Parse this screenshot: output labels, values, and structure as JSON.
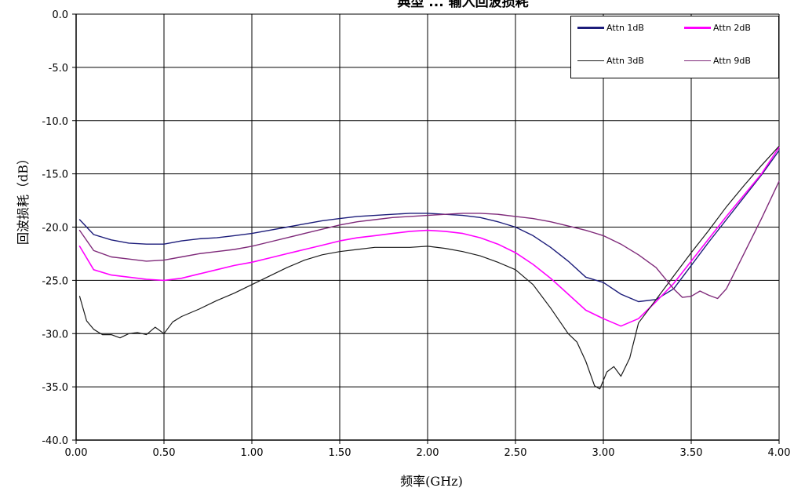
{
  "chart_data": {
    "type": "line",
    "title": "典型 ... 输入回波损耗",
    "xlabel": "频率(GHz)",
    "ylabel": "回波损耗（dB）",
    "xlim": [
      0,
      4
    ],
    "ylim": [
      -40,
      0
    ],
    "x_ticks": [
      "0.00",
      "0.50",
      "1.00",
      "1.50",
      "2.00",
      "2.50",
      "3.00",
      "3.50",
      "4.00"
    ],
    "y_ticks": [
      "0.0",
      "-5.0",
      "-10.0",
      "-15.0",
      "-20.0",
      "-25.0",
      "-30.0",
      "-35.0",
      "-40.0"
    ],
    "grid": true,
    "legend_position": "top-right",
    "series": [
      {
        "name": "Attn 1dB",
        "color": "#1c1c7a",
        "width": 1.4,
        "x": [
          0.02,
          0.1,
          0.2,
          0.3,
          0.4,
          0.5,
          0.6,
          0.7,
          0.8,
          0.9,
          1.0,
          1.1,
          1.2,
          1.3,
          1.4,
          1.5,
          1.6,
          1.7,
          1.8,
          1.9,
          2.0,
          2.1,
          2.2,
          2.3,
          2.4,
          2.5,
          2.6,
          2.7,
          2.8,
          2.9,
          3.0,
          3.1,
          3.2,
          3.3,
          3.4,
          3.5,
          3.6,
          3.7,
          3.8,
          3.9,
          4.0
        ],
        "y": [
          -19.3,
          -20.7,
          -21.2,
          -21.5,
          -21.6,
          -21.6,
          -21.3,
          -21.1,
          -21.0,
          -20.8,
          -20.6,
          -20.3,
          -20.0,
          -19.7,
          -19.4,
          -19.2,
          -19.0,
          -18.9,
          -18.8,
          -18.7,
          -18.7,
          -18.8,
          -18.9,
          -19.1,
          -19.5,
          -20.0,
          -20.8,
          -21.9,
          -23.2,
          -24.7,
          -25.2,
          -26.3,
          -27.0,
          -26.8,
          -25.8,
          -23.6,
          -21.4,
          -19.3,
          -17.2,
          -15.1,
          -12.8
        ]
      },
      {
        "name": "Attn 2dB",
        "color": "#ff00ff",
        "width": 1.6,
        "x": [
          0.02,
          0.1,
          0.2,
          0.3,
          0.4,
          0.5,
          0.6,
          0.7,
          0.8,
          0.9,
          1.0,
          1.1,
          1.2,
          1.3,
          1.4,
          1.5,
          1.6,
          1.7,
          1.8,
          1.9,
          2.0,
          2.1,
          2.2,
          2.3,
          2.4,
          2.5,
          2.6,
          2.7,
          2.8,
          2.9,
          3.0,
          3.1,
          3.2,
          3.3,
          3.4,
          3.5,
          3.6,
          3.7,
          3.8,
          3.9,
          4.0
        ],
        "y": [
          -21.8,
          -24.0,
          -24.5,
          -24.7,
          -24.9,
          -25.0,
          -24.8,
          -24.4,
          -24.0,
          -23.6,
          -23.3,
          -22.9,
          -22.5,
          -22.1,
          -21.7,
          -21.3,
          -21.0,
          -20.8,
          -20.6,
          -20.4,
          -20.3,
          -20.4,
          -20.6,
          -21.0,
          -21.6,
          -22.4,
          -23.5,
          -24.8,
          -26.3,
          -27.8,
          -28.6,
          -29.3,
          -28.6,
          -27.0,
          -25.3,
          -23.2,
          -21.1,
          -19.0,
          -17.0,
          -15.0,
          -12.5
        ]
      },
      {
        "name": "Attn 3dB",
        "color": "#1a1a1a",
        "width": 1.2,
        "x": [
          0.02,
          0.06,
          0.1,
          0.15,
          0.2,
          0.25,
          0.3,
          0.35,
          0.4,
          0.45,
          0.5,
          0.55,
          0.6,
          0.7,
          0.8,
          0.9,
          1.0,
          1.1,
          1.2,
          1.3,
          1.4,
          1.5,
          1.6,
          1.7,
          1.8,
          1.9,
          2.0,
          2.1,
          2.2,
          2.3,
          2.4,
          2.5,
          2.6,
          2.7,
          2.8,
          2.85,
          2.9,
          2.95,
          2.98,
          3.02,
          3.06,
          3.1,
          3.15,
          3.2,
          3.3,
          3.4,
          3.5,
          3.6,
          3.7,
          3.8,
          3.9,
          4.0
        ],
        "y": [
          -26.5,
          -28.8,
          -29.6,
          -30.1,
          -30.1,
          -30.4,
          -30.0,
          -29.9,
          -30.1,
          -29.4,
          -30.0,
          -28.9,
          -28.4,
          -27.7,
          -26.9,
          -26.2,
          -25.4,
          -24.6,
          -23.8,
          -23.1,
          -22.6,
          -22.3,
          -22.1,
          -21.9,
          -21.9,
          -21.9,
          -21.8,
          -22.0,
          -22.3,
          -22.7,
          -23.3,
          -24.0,
          -25.4,
          -27.6,
          -30.0,
          -30.8,
          -32.6,
          -34.9,
          -35.2,
          -33.6,
          -33.1,
          -34.0,
          -32.3,
          -29.0,
          -26.8,
          -24.6,
          -22.4,
          -20.3,
          -18.1,
          -16.1,
          -14.2,
          -12.4
        ]
      },
      {
        "name": "Attn 9dB",
        "color": "#7f2a7a",
        "width": 1.4,
        "x": [
          0.02,
          0.1,
          0.2,
          0.3,
          0.4,
          0.5,
          0.6,
          0.7,
          0.8,
          0.9,
          1.0,
          1.1,
          1.2,
          1.3,
          1.4,
          1.5,
          1.6,
          1.7,
          1.8,
          1.9,
          2.0,
          2.1,
          2.2,
          2.3,
          2.4,
          2.5,
          2.6,
          2.7,
          2.8,
          2.9,
          3.0,
          3.1,
          3.2,
          3.3,
          3.35,
          3.4,
          3.45,
          3.5,
          3.55,
          3.6,
          3.65,
          3.7,
          3.8,
          3.9,
          4.0
        ],
        "y": [
          -20.3,
          -22.2,
          -22.8,
          -23.0,
          -23.2,
          -23.1,
          -22.8,
          -22.5,
          -22.3,
          -22.1,
          -21.8,
          -21.4,
          -21.0,
          -20.6,
          -20.2,
          -19.8,
          -19.5,
          -19.3,
          -19.1,
          -19.0,
          -18.9,
          -18.8,
          -18.7,
          -18.7,
          -18.8,
          -19.0,
          -19.2,
          -19.5,
          -19.9,
          -20.3,
          -20.8,
          -21.6,
          -22.6,
          -23.8,
          -24.8,
          -25.8,
          -26.6,
          -26.5,
          -26.0,
          -26.4,
          -26.7,
          -25.8,
          -22.5,
          -19.2,
          -15.7
        ]
      }
    ]
  }
}
